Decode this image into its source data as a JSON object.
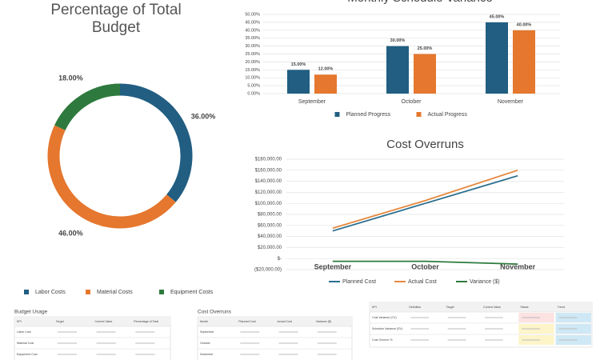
{
  "chart_data": [
    {
      "type": "donut",
      "title": "Percentage of Total Budget",
      "categories": [
        "Labor Costs",
        "Material Costs",
        "Equipment Costs"
      ],
      "values": [
        36,
        46,
        18
      ],
      "value_labels": [
        "36.00%",
        "46.00%",
        "18.00%"
      ],
      "colors": [
        "#215e82",
        "#e5772e",
        "#2e7a3e"
      ],
      "legend": "bottom"
    },
    {
      "type": "bar",
      "title": "Monthly Schedule Variance",
      "categories": [
        "September",
        "October",
        "November"
      ],
      "series": [
        {
          "name": "Planned Progress",
          "color": "#215e82",
          "values": [
            15,
            30,
            45
          ],
          "value_labels": [
            "15.00%",
            "30.00%",
            "45.00%"
          ]
        },
        {
          "name": "Actual Progress",
          "color": "#e5772e",
          "values": [
            12,
            25,
            40
          ],
          "value_labels": [
            "12.00%",
            "25.00%",
            "40.00%"
          ]
        }
      ],
      "ylim": [
        0,
        50
      ],
      "yticks": [
        {
          "value": 0,
          "label": "0.00%"
        },
        {
          "value": 5,
          "label": "5.00%"
        },
        {
          "value": 10,
          "label": "10.00%"
        },
        {
          "value": 15,
          "label": "15.00%"
        },
        {
          "value": 20,
          "label": "20.00%"
        },
        {
          "value": 25,
          "label": "25.00%"
        },
        {
          "value": 30,
          "label": "30.00%"
        },
        {
          "value": 35,
          "label": "35.00%"
        },
        {
          "value": 40,
          "label": "40.00%"
        },
        {
          "value": 45,
          "label": "45.00%"
        },
        {
          "value": 50,
          "label": "50.00%"
        }
      ],
      "grid": true,
      "legend": "bottom"
    },
    {
      "type": "line",
      "title": "Cost Overruns",
      "categories": [
        "September",
        "October",
        "November"
      ],
      "series": [
        {
          "name": "Planned Cost",
          "color": "#2a6f8f",
          "values": [
            50000,
            100000,
            150000
          ]
        },
        {
          "name": "Actual Cost",
          "color": "#e5883e",
          "values": [
            55000,
            105000,
            160000
          ]
        },
        {
          "name": "Variance ($)",
          "color": "#2e7a3e",
          "values": [
            -5000,
            -5000,
            -10000
          ]
        }
      ],
      "ylim": [
        -20000,
        180000
      ],
      "yticks": [
        {
          "value": -20000,
          "label": "($20,000.00)"
        },
        {
          "value": 0,
          "label": "$-"
        },
        {
          "value": 20000,
          "label": "$20,000.00"
        },
        {
          "value": 40000,
          "label": "$40,000.00"
        },
        {
          "value": 60000,
          "label": "$60,000.00"
        },
        {
          "value": 80000,
          "label": "$80,000.00"
        },
        {
          "value": 100000,
          "label": "$100,000.00"
        },
        {
          "value": 120000,
          "label": "$120,000.00"
        },
        {
          "value": 140000,
          "label": "$140,000.00"
        },
        {
          "value": 160000,
          "label": "$160,000.00"
        },
        {
          "value": 180000,
          "label": "$180,000.00"
        }
      ],
      "grid": true,
      "legend": "bottom"
    }
  ],
  "tables": [
    {
      "title": "Budget Usage",
      "columns": [
        "KPI",
        "Target",
        "Current Value",
        "Percentage of Total"
      ],
      "rows": [
        "Labor Cost",
        "Material Cost",
        "Equipment Cost"
      ]
    },
    {
      "title": "Cost Overruns",
      "columns": [
        "Month",
        "Planned Cost",
        "Actual Cost",
        "Variance ($)"
      ],
      "rows": [
        "September",
        "October",
        "November"
      ]
    },
    {
      "columns": [
        "KPI",
        "Definition",
        "Target",
        "Current Value",
        "Status",
        "Trend"
      ],
      "rows": [
        "Cost Variance (CV)",
        "Schedule Variance (SV)",
        "Cost Overrun %"
      ]
    }
  ]
}
